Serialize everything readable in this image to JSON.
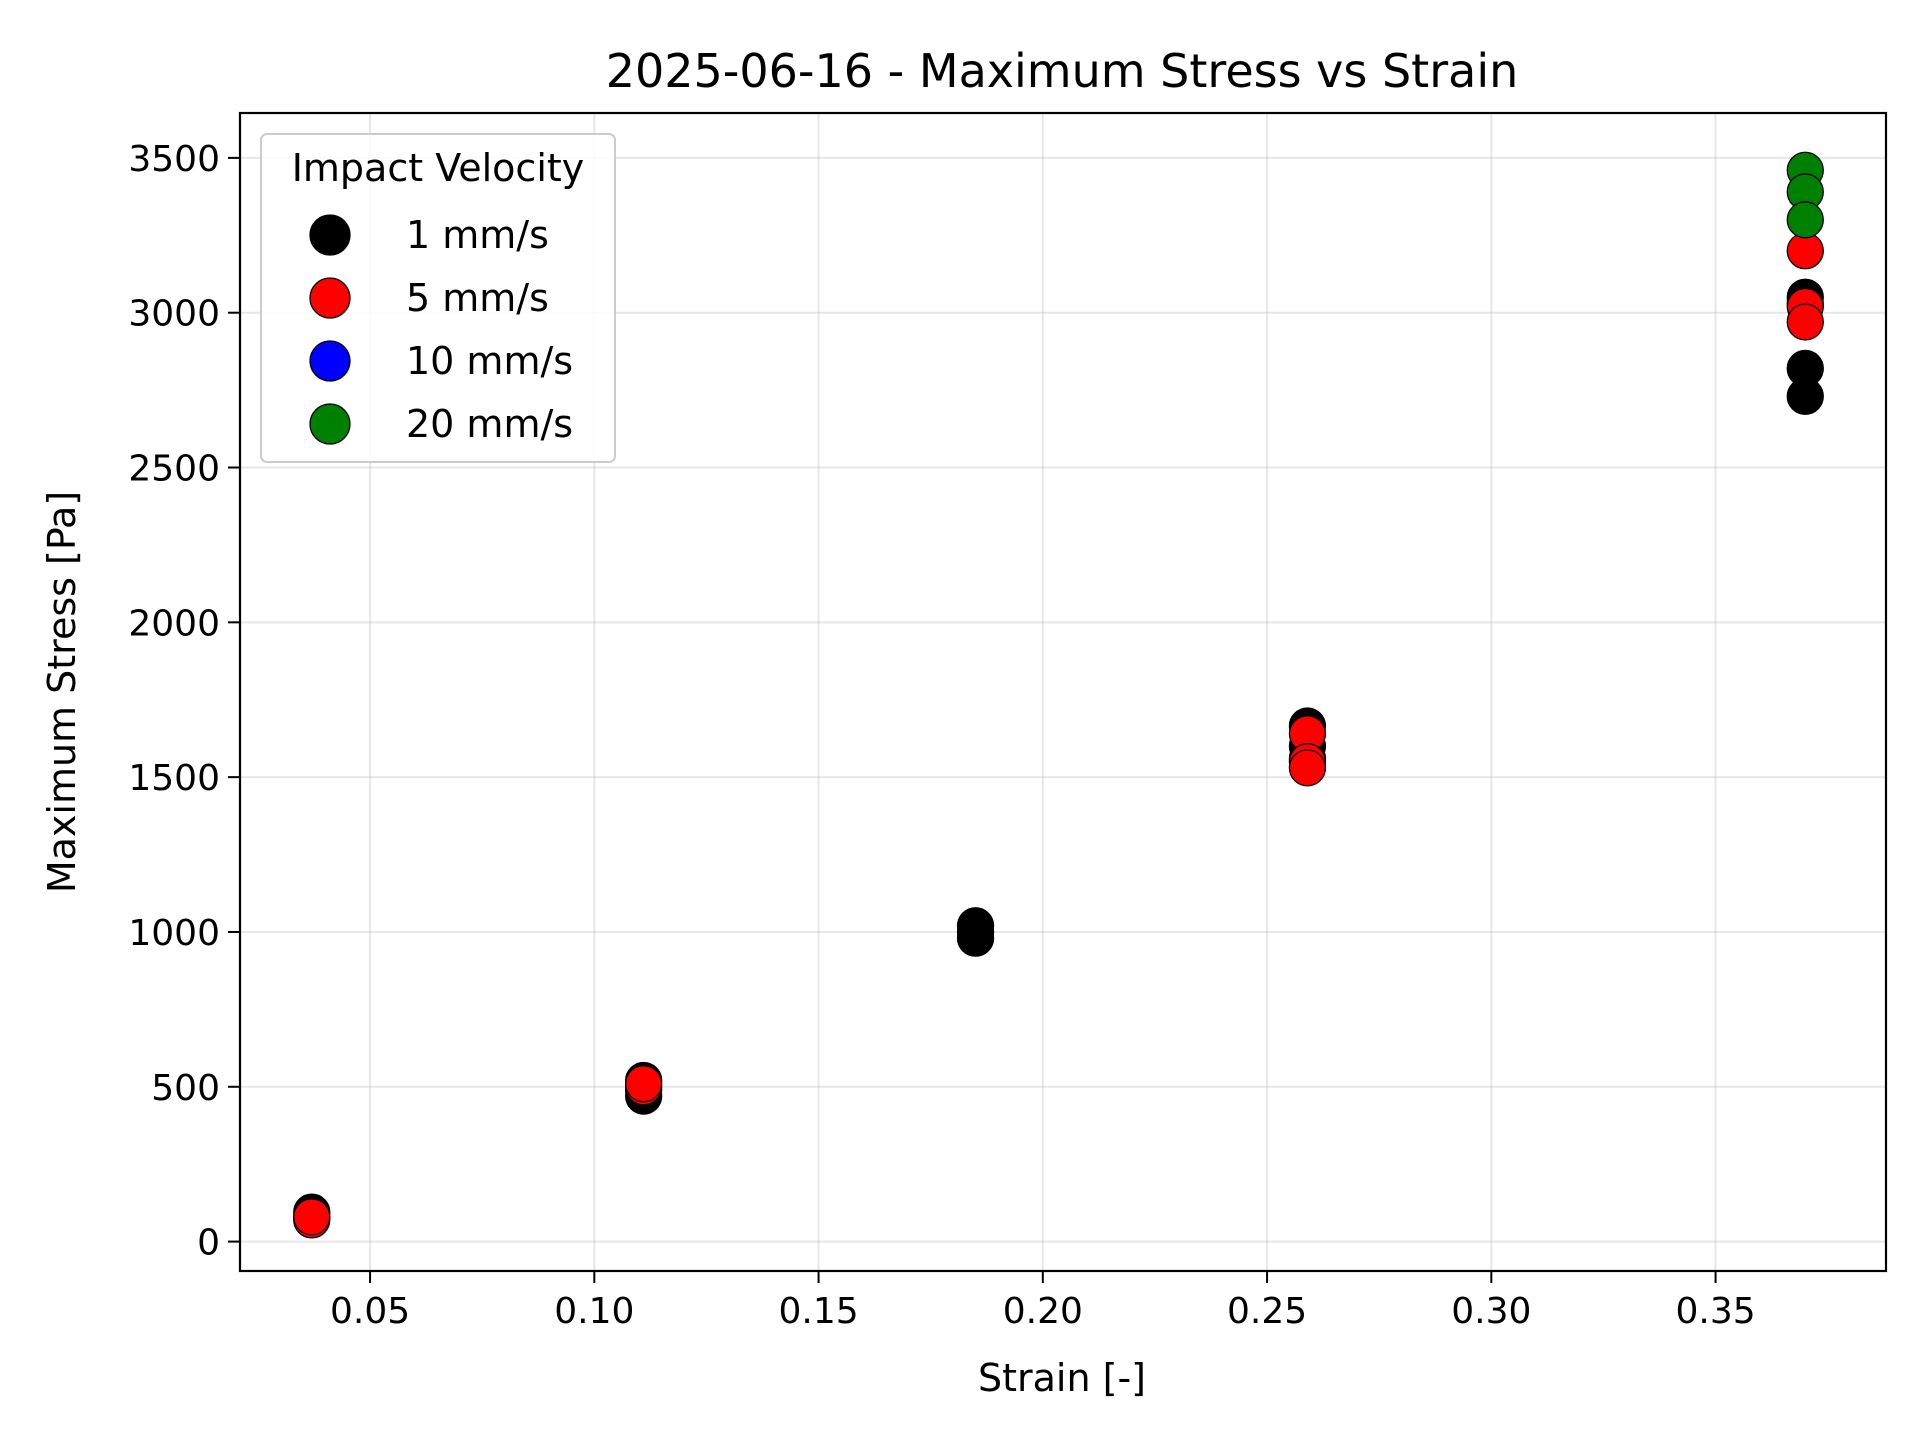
{
  "chart_data": {
    "type": "scatter",
    "title": "2025-06-16 - Maximum Stress vs Strain",
    "xlabel": "Strain [-]",
    "ylabel": "Maximum Stress [Pa]",
    "xlim": [
      0.021,
      0.388
    ],
    "ylim": [
      -95,
      3645
    ],
    "xticks": [
      0.05,
      0.1,
      0.15,
      0.2,
      0.25,
      0.3,
      0.35
    ],
    "xtick_labels": [
      "0.05",
      "0.10",
      "0.15",
      "0.20",
      "0.25",
      "0.30",
      "0.35"
    ],
    "yticks": [
      0,
      500,
      1000,
      1500,
      2000,
      2500,
      3000,
      3500
    ],
    "ytick_labels": [
      "0",
      "500",
      "1000",
      "1500",
      "2000",
      "2500",
      "3000",
      "3500"
    ],
    "grid": true,
    "legend": {
      "title": "Impact Velocity",
      "placement": "upper-left"
    },
    "series": [
      {
        "name": "1 mm/s",
        "color": "#000000",
        "x": [
          0.037,
          0.037,
          0.111,
          0.111,
          0.111,
          0.185,
          0.185,
          0.185,
          0.259,
          0.259,
          0.259,
          0.37,
          0.37,
          0.37,
          0.37
        ],
        "y": [
          95,
          80,
          520,
          470,
          490,
          1020,
          980,
          1000,
          1665,
          1600,
          1560,
          3050,
          3030,
          2820,
          2730
        ]
      },
      {
        "name": "5 mm/s",
        "color": "#ff0000",
        "x": [
          0.037,
          0.037,
          0.111,
          0.111,
          0.259,
          0.259,
          0.259,
          0.37,
          0.37,
          0.37
        ],
        "y": [
          70,
          80,
          500,
          510,
          1640,
          1550,
          1530,
          3200,
          3020,
          2970
        ]
      },
      {
        "name": "10 mm/s",
        "color": "#0000ff",
        "x": [],
        "y": []
      },
      {
        "name": "20 mm/s",
        "color": "#008000",
        "x": [
          0.37,
          0.37,
          0.37
        ],
        "y": [
          3460,
          3390,
          3300
        ]
      }
    ]
  }
}
